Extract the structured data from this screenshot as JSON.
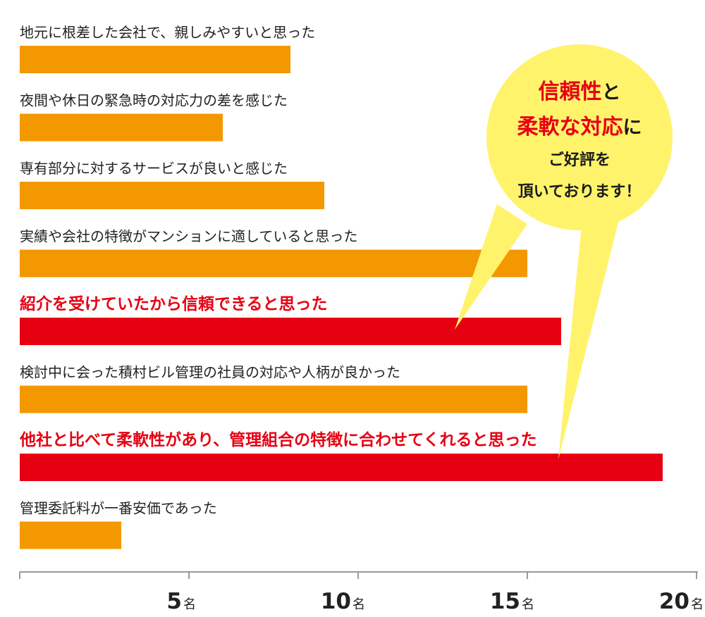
{
  "chart_data": {
    "type": "bar",
    "orientation": "horizontal",
    "categories": [
      "地元に根差した会社で、親しみやすいと思った",
      "夜間や休日の緊急時の対応力の差を感じた",
      "専有部分に対するサービスが良いと感じた",
      "実績や会社の特徴がマンションに適していると思った",
      "紹介を受けていたから信頼できると思った",
      "検討中に会った積村ビル管理の社員の対応や人柄が良かった",
      "他社と比べて柔軟性があり、管理組合の特徴に合わせてくれると思った",
      "管理委託料が一番安価であった"
    ],
    "values": [
      8,
      6,
      9,
      15,
      16,
      15,
      19,
      3
    ],
    "highlighted": [
      false,
      false,
      false,
      false,
      true,
      false,
      true,
      false
    ],
    "xlim": [
      0,
      20
    ],
    "xticks": [
      0,
      5,
      10,
      15,
      20
    ],
    "xtick_labels": [
      "",
      "5",
      "10",
      "15",
      "20"
    ],
    "unit": "名",
    "colors": {
      "bar": "#f39800",
      "highlight": "#e60012",
      "axis": "#999999"
    },
    "callout": {
      "lines": [
        [
          {
            "text": "信頼性",
            "color": "red"
          },
          {
            "text": "と",
            "color": "dark"
          }
        ],
        [
          {
            "text": "柔軟な対応",
            "color": "red"
          },
          {
            "text": "に",
            "color": "dark"
          }
        ],
        [
          {
            "text": "ご好評を",
            "color": "dark"
          }
        ],
        [
          {
            "text": "頂いております！",
            "color": "dark"
          }
        ]
      ],
      "fill": "#fff36b",
      "points_to": [
        4,
        6
      ]
    }
  }
}
